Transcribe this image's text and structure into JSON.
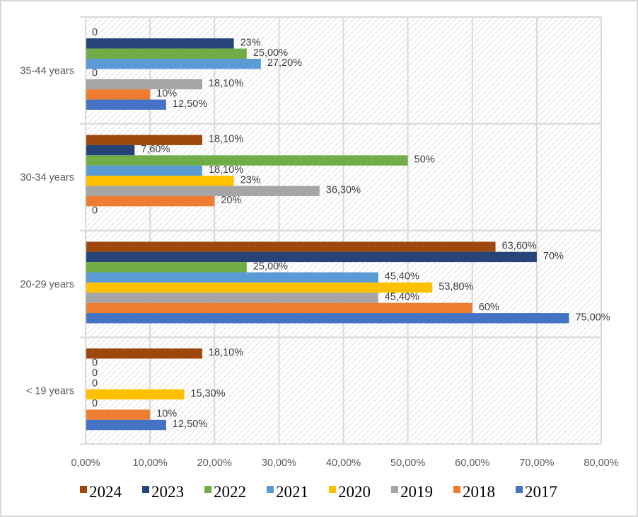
{
  "chart_data": {
    "type": "bar",
    "orientation": "horizontal",
    "title": "",
    "xlabel": "",
    "ylabel": "",
    "xlim": [
      0,
      80
    ],
    "x_unit": "%",
    "x_ticks": [
      0,
      10,
      20,
      30,
      40,
      50,
      60,
      70,
      80
    ],
    "x_tick_labels": [
      "0,00%",
      "10,00%",
      "20,00%",
      "30,00%",
      "40,00%",
      "50,00%",
      "60,00%",
      "70,00%",
      "80,00%"
    ],
    "grid": true,
    "legend_position": "bottom",
    "categories": [
      "35-44 years",
      "30-34 years",
      "20-29 years",
      "< 19 years"
    ],
    "series": [
      {
        "name": "2024",
        "color": "#9E480E",
        "values": [
          0,
          18.1,
          63.6,
          18.1
        ],
        "labels": [
          "0",
          "18,10%",
          "63,60%",
          "18,10%"
        ]
      },
      {
        "name": "2023",
        "color": "#264478",
        "values": [
          23,
          7.6,
          70,
          0
        ],
        "labels": [
          "23%",
          "7,60%",
          "70%",
          "0"
        ]
      },
      {
        "name": "2022",
        "color": "#70AD47",
        "values": [
          25,
          50,
          25,
          0
        ],
        "labels": [
          "25,00%",
          "50%",
          "25,00%",
          "0"
        ]
      },
      {
        "name": "2021",
        "color": "#5B9BD5",
        "values": [
          27.2,
          18.1,
          45.4,
          0
        ],
        "labels": [
          "27,20%",
          "18,10%",
          "45,40%",
          "0"
        ]
      },
      {
        "name": "2020",
        "color": "#FFC000",
        "values": [
          0,
          23,
          53.8,
          15.3
        ],
        "labels": [
          "0",
          "23%",
          "53,80%",
          "15,30%"
        ]
      },
      {
        "name": "2019",
        "color": "#A5A5A5",
        "values": [
          18.1,
          36.3,
          45.4,
          0
        ],
        "labels": [
          "18,10%",
          "36,30%",
          "45,40%",
          "0"
        ]
      },
      {
        "name": "2018",
        "color": "#ED7D31",
        "values": [
          10,
          20,
          60,
          10
        ],
        "labels": [
          "10%",
          "20%",
          "60%",
          "10%"
        ]
      },
      {
        "name": "2017",
        "color": "#4472C4",
        "values": [
          12.5,
          0,
          75,
          12.5
        ],
        "labels": [
          "12,50%",
          "0",
          "75,00%",
          "12,50%"
        ]
      }
    ]
  }
}
